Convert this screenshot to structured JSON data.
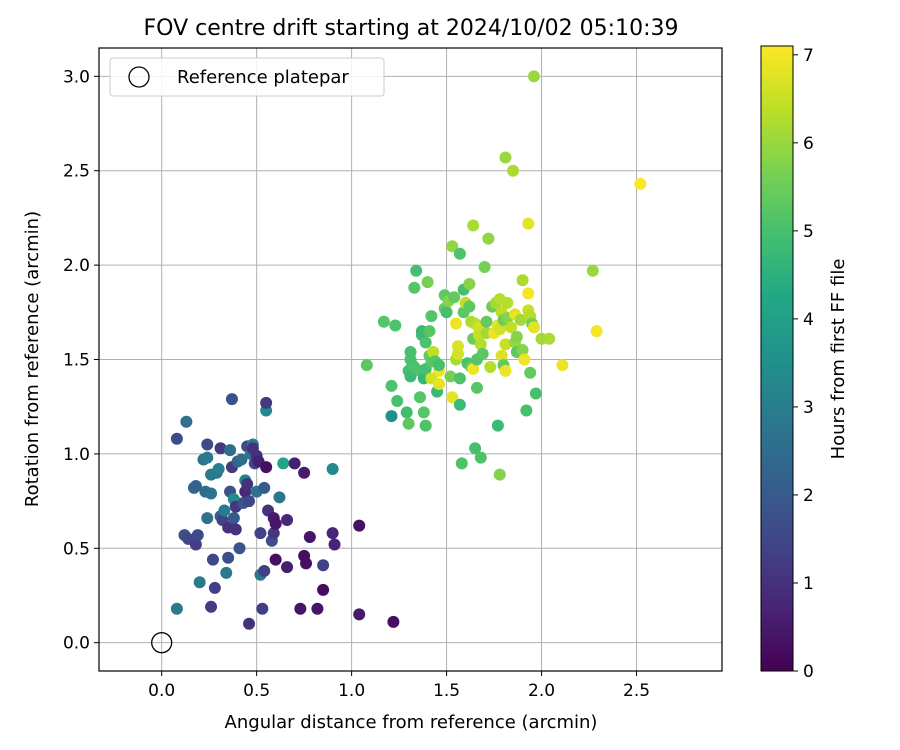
{
  "chart_data": {
    "type": "scatter",
    "title": "FOV centre drift starting at 2024/10/02 05:10:39",
    "xlabel": "Angular distance from reference (arcmin)",
    "ylabel": "Rotation from reference (arcmin)",
    "xlim": [
      -0.33,
      2.95
    ],
    "ylim": [
      -0.15,
      3.15
    ],
    "xticks": [
      "0.0",
      "0.5",
      "1.0",
      "1.5",
      "2.0",
      "2.5"
    ],
    "yticks": [
      "0.0",
      "0.5",
      "1.0",
      "1.5",
      "2.0",
      "2.5",
      "3.0"
    ],
    "grid": true,
    "legend": {
      "label": "Reference platepar",
      "placement": "top-left"
    },
    "reference_point": {
      "x": 0.0,
      "y": 0.0
    },
    "colorbar": {
      "label": "Hours from first FF file",
      "colormap": "viridis",
      "range": [
        0,
        7.1
      ],
      "ticks": [
        "0",
        "1",
        "2",
        "3",
        "4",
        "5",
        "6",
        "7"
      ]
    },
    "points": [
      [
        0.08,
        1.08,
        1.6
      ],
      [
        0.13,
        1.17,
        2.6
      ],
      [
        0.12,
        0.57,
        1.7
      ],
      [
        0.14,
        0.55,
        1.5
      ],
      [
        0.17,
        0.82,
        2.3
      ],
      [
        0.18,
        0.83,
        2.2
      ],
      [
        0.18,
        0.52,
        1.3
      ],
      [
        0.19,
        0.57,
        1.6
      ],
      [
        0.2,
        0.32,
        2.9
      ],
      [
        0.08,
        0.18,
        2.9
      ],
      [
        0.22,
        0.97,
        2.7
      ],
      [
        0.24,
        1.05,
        1.6
      ],
      [
        0.24,
        0.98,
        2.9
      ],
      [
        0.23,
        0.8,
        2.5
      ],
      [
        0.24,
        0.66,
        2.6
      ],
      [
        0.26,
        0.79,
        2.7
      ],
      [
        0.26,
        0.89,
        2.9
      ],
      [
        0.27,
        0.44,
        1.5
      ],
      [
        0.26,
        0.19,
        1.2
      ],
      [
        0.28,
        0.29,
        1.3
      ],
      [
        0.29,
        0.9,
        2.9
      ],
      [
        0.3,
        0.92,
        3.0
      ],
      [
        0.31,
        0.67,
        2.1
      ],
      [
        0.32,
        0.65,
        1.4
      ],
      [
        0.31,
        1.03,
        1.2
      ],
      [
        0.33,
        0.7,
        2.9
      ],
      [
        0.34,
        0.37,
        2.8
      ],
      [
        0.35,
        0.45,
        1.7
      ],
      [
        0.35,
        0.61,
        1.0
      ],
      [
        0.36,
        0.8,
        1.8
      ],
      [
        0.36,
        1.02,
        2.5
      ],
      [
        0.37,
        1.29,
        1.8
      ],
      [
        0.37,
        0.93,
        1.2
      ],
      [
        0.38,
        0.76,
        3.4
      ],
      [
        0.38,
        0.66,
        2.0
      ],
      [
        0.39,
        0.6,
        1.0
      ],
      [
        0.39,
        0.72,
        1.1
      ],
      [
        0.4,
        0.96,
        2.3
      ],
      [
        0.41,
        0.5,
        1.9
      ],
      [
        0.42,
        0.97,
        2.5
      ],
      [
        0.43,
        0.74,
        1.9
      ],
      [
        0.44,
        0.8,
        0.8
      ],
      [
        0.44,
        0.86,
        3.1
      ],
      [
        0.45,
        1.04,
        1.6
      ],
      [
        0.45,
        0.84,
        1.0
      ],
      [
        0.46,
        0.75,
        1.5
      ],
      [
        0.46,
        0.1,
        1.0
      ],
      [
        0.47,
        1.0,
        2.7
      ],
      [
        0.48,
        1.05,
        2.9
      ],
      [
        0.48,
        1.03,
        1.0
      ],
      [
        0.49,
        0.95,
        1.4
      ],
      [
        0.5,
        0.99,
        1.0
      ],
      [
        0.5,
        0.8,
        2.7
      ],
      [
        0.51,
        0.96,
        0.6
      ],
      [
        0.52,
        0.58,
        1.4
      ],
      [
        0.52,
        0.36,
        2.8
      ],
      [
        0.53,
        0.18,
        1.3
      ],
      [
        0.54,
        0.82,
        2.0
      ],
      [
        0.54,
        0.38,
        1.3
      ],
      [
        0.55,
        1.23,
        3.3
      ],
      [
        0.55,
        0.93,
        0.3
      ],
      [
        0.55,
        1.27,
        1.2
      ],
      [
        0.56,
        0.7,
        1.0
      ],
      [
        0.58,
        0.54,
        1.7
      ],
      [
        0.59,
        0.58,
        1.1
      ],
      [
        0.59,
        0.66,
        0.5
      ],
      [
        0.6,
        0.63,
        0.4
      ],
      [
        0.6,
        0.44,
        0.3
      ],
      [
        0.62,
        0.77,
        2.8
      ],
      [
        0.64,
        0.95,
        4.1
      ],
      [
        0.66,
        0.65,
        0.8
      ],
      [
        0.66,
        0.4,
        0.6
      ],
      [
        0.7,
        0.95,
        0.6
      ],
      [
        0.73,
        0.18,
        0.4
      ],
      [
        0.75,
        0.9,
        0.5
      ],
      [
        0.75,
        0.46,
        0.3
      ],
      [
        0.76,
        0.42,
        0.3
      ],
      [
        0.78,
        0.56,
        0.4
      ],
      [
        0.82,
        0.18,
        0.4
      ],
      [
        0.85,
        0.28,
        0.2
      ],
      [
        0.85,
        0.41,
        1.4
      ],
      [
        0.9,
        0.92,
        3.3
      ],
      [
        0.9,
        0.58,
        0.8
      ],
      [
        0.91,
        0.52,
        0.7
      ],
      [
        1.04,
        0.62,
        0.3
      ],
      [
        1.04,
        0.15,
        0.5
      ],
      [
        1.22,
        0.11,
        0.3
      ],
      [
        1.08,
        1.47,
        5.3
      ],
      [
        1.17,
        1.7,
        5.2
      ],
      [
        1.21,
        1.2,
        3.5
      ],
      [
        1.21,
        1.36,
        5.1
      ],
      [
        1.23,
        1.68,
        5.1
      ],
      [
        1.24,
        1.28,
        5.0
      ],
      [
        1.29,
        1.22,
        4.9
      ],
      [
        1.3,
        1.44,
        5.0
      ],
      [
        1.3,
        1.16,
        5.3
      ],
      [
        1.31,
        1.5,
        5.1
      ],
      [
        1.31,
        1.54,
        5.0
      ],
      [
        1.31,
        1.41,
        4.8
      ],
      [
        1.32,
        1.47,
        5.0
      ],
      [
        1.33,
        1.46,
        5.1
      ],
      [
        1.33,
        1.88,
        5.2
      ],
      [
        1.34,
        1.97,
        5.0
      ],
      [
        1.36,
        1.3,
        5.2
      ],
      [
        1.36,
        1.44,
        5.1
      ],
      [
        1.37,
        1.63,
        4.9
      ],
      [
        1.37,
        1.65,
        4.8
      ],
      [
        1.38,
        1.22,
        5.2
      ],
      [
        1.38,
        1.4,
        4.7
      ],
      [
        1.39,
        1.45,
        5.0
      ],
      [
        1.39,
        1.59,
        5.1
      ],
      [
        1.39,
        1.15,
        5.1
      ],
      [
        1.4,
        1.91,
        5.6
      ],
      [
        1.42,
        1.73,
        5.2
      ],
      [
        1.41,
        1.65,
        5.2
      ],
      [
        1.41,
        1.52,
        5.4
      ],
      [
        1.42,
        1.49,
        5.3
      ],
      [
        1.42,
        1.4,
        6.6
      ],
      [
        1.43,
        1.54,
        6.4
      ],
      [
        1.44,
        1.49,
        5.2
      ],
      [
        1.45,
        1.33,
        4.8
      ],
      [
        1.46,
        1.44,
        6.9
      ],
      [
        1.46,
        1.47,
        5.0
      ],
      [
        1.46,
        1.37,
        6.8
      ],
      [
        1.49,
        1.84,
        5.3
      ],
      [
        1.49,
        1.77,
        5.4
      ],
      [
        1.5,
        1.75,
        5.0
      ],
      [
        1.51,
        1.81,
        5.8
      ],
      [
        1.52,
        1.41,
        5.6
      ],
      [
        1.53,
        2.1,
        5.9
      ],
      [
        1.53,
        1.3,
        6.8
      ],
      [
        1.54,
        1.83,
        5.4
      ],
      [
        1.55,
        1.5,
        6.2
      ],
      [
        1.55,
        1.69,
        6.9
      ],
      [
        1.56,
        1.53,
        6.6
      ],
      [
        1.56,
        1.57,
        6.7
      ],
      [
        1.57,
        1.4,
        5.1
      ],
      [
        1.57,
        1.26,
        4.8
      ],
      [
        1.57,
        2.06,
        5.1
      ],
      [
        1.58,
        0.95,
        5.1
      ],
      [
        1.59,
        1.75,
        5.3
      ],
      [
        1.59,
        1.87,
        5.0
      ],
      [
        1.6,
        1.8,
        6.4
      ],
      [
        1.61,
        1.48,
        5.0
      ],
      [
        1.62,
        1.9,
        5.8
      ],
      [
        1.62,
        1.78,
        5.3
      ],
      [
        1.63,
        1.7,
        6.2
      ],
      [
        1.63,
        1.46,
        5.4
      ],
      [
        1.64,
        1.45,
        6.9
      ],
      [
        1.64,
        1.61,
        5.5
      ],
      [
        1.64,
        2.21,
        6.2
      ],
      [
        1.65,
        1.69,
        6.3
      ],
      [
        1.65,
        1.03,
        5.0
      ],
      [
        1.66,
        1.5,
        5.2
      ],
      [
        1.66,
        1.35,
        5.2
      ],
      [
        1.67,
        1.67,
        6.6
      ],
      [
        1.67,
        1.63,
        6.5
      ],
      [
        1.68,
        0.98,
        5.1
      ],
      [
        1.68,
        1.58,
        6.3
      ],
      [
        1.69,
        1.53,
        5.3
      ],
      [
        1.7,
        1.99,
        5.6
      ],
      [
        1.71,
        1.64,
        6.1
      ],
      [
        1.71,
        1.7,
        5.4
      ],
      [
        1.72,
        2.14,
        5.9
      ],
      [
        1.73,
        1.46,
        6.3
      ],
      [
        1.74,
        1.78,
        5.5
      ],
      [
        1.75,
        1.64,
        6.9
      ],
      [
        1.76,
        1.8,
        6.1
      ],
      [
        1.77,
        1.15,
        4.8
      ],
      [
        1.77,
        1.68,
        6.8
      ],
      [
        1.78,
        0.89,
        5.8
      ],
      [
        1.78,
        1.82,
        6.3
      ],
      [
        1.78,
        1.66,
        6.6
      ],
      [
        1.79,
        1.52,
        6.7
      ],
      [
        1.79,
        1.75,
        6.4
      ],
      [
        1.8,
        1.71,
        5.5
      ],
      [
        1.8,
        1.47,
        5.4
      ],
      [
        1.81,
        1.44,
        6.9
      ],
      [
        1.81,
        1.58,
        6.5
      ],
      [
        1.81,
        2.57,
        6.0
      ],
      [
        1.82,
        1.8,
        6.3
      ],
      [
        1.82,
        1.72,
        5.8
      ],
      [
        1.84,
        1.67,
        6.4
      ],
      [
        1.85,
        2.5,
        6.2
      ],
      [
        1.86,
        1.74,
        6.8
      ],
      [
        1.86,
        1.59,
        6.0
      ],
      [
        1.87,
        1.62,
        5.8
      ],
      [
        1.87,
        1.54,
        5.3
      ],
      [
        1.89,
        1.71,
        6.1
      ],
      [
        1.9,
        1.55,
        5.8
      ],
      [
        1.9,
        1.92,
        6.2
      ],
      [
        1.91,
        1.5,
        6.9
      ],
      [
        1.92,
        1.23,
        5.0
      ],
      [
        1.93,
        2.22,
        6.8
      ],
      [
        1.93,
        1.85,
        7.0
      ],
      [
        1.93,
        1.76,
        6.5
      ],
      [
        1.94,
        1.43,
        5.4
      ],
      [
        1.94,
        1.73,
        6.3
      ],
      [
        1.95,
        1.69,
        5.6
      ],
      [
        1.96,
        1.67,
        6.8
      ],
      [
        1.96,
        3.0,
        6.0
      ],
      [
        1.97,
        1.32,
        5.0
      ],
      [
        2.0,
        1.61,
        6.1
      ],
      [
        2.04,
        1.61,
        6.2
      ],
      [
        2.11,
        1.47,
        6.9
      ],
      [
        2.27,
        1.97,
        6.0
      ],
      [
        2.29,
        1.65,
        7.0
      ],
      [
        2.52,
        2.43,
        7.1
      ]
    ]
  }
}
